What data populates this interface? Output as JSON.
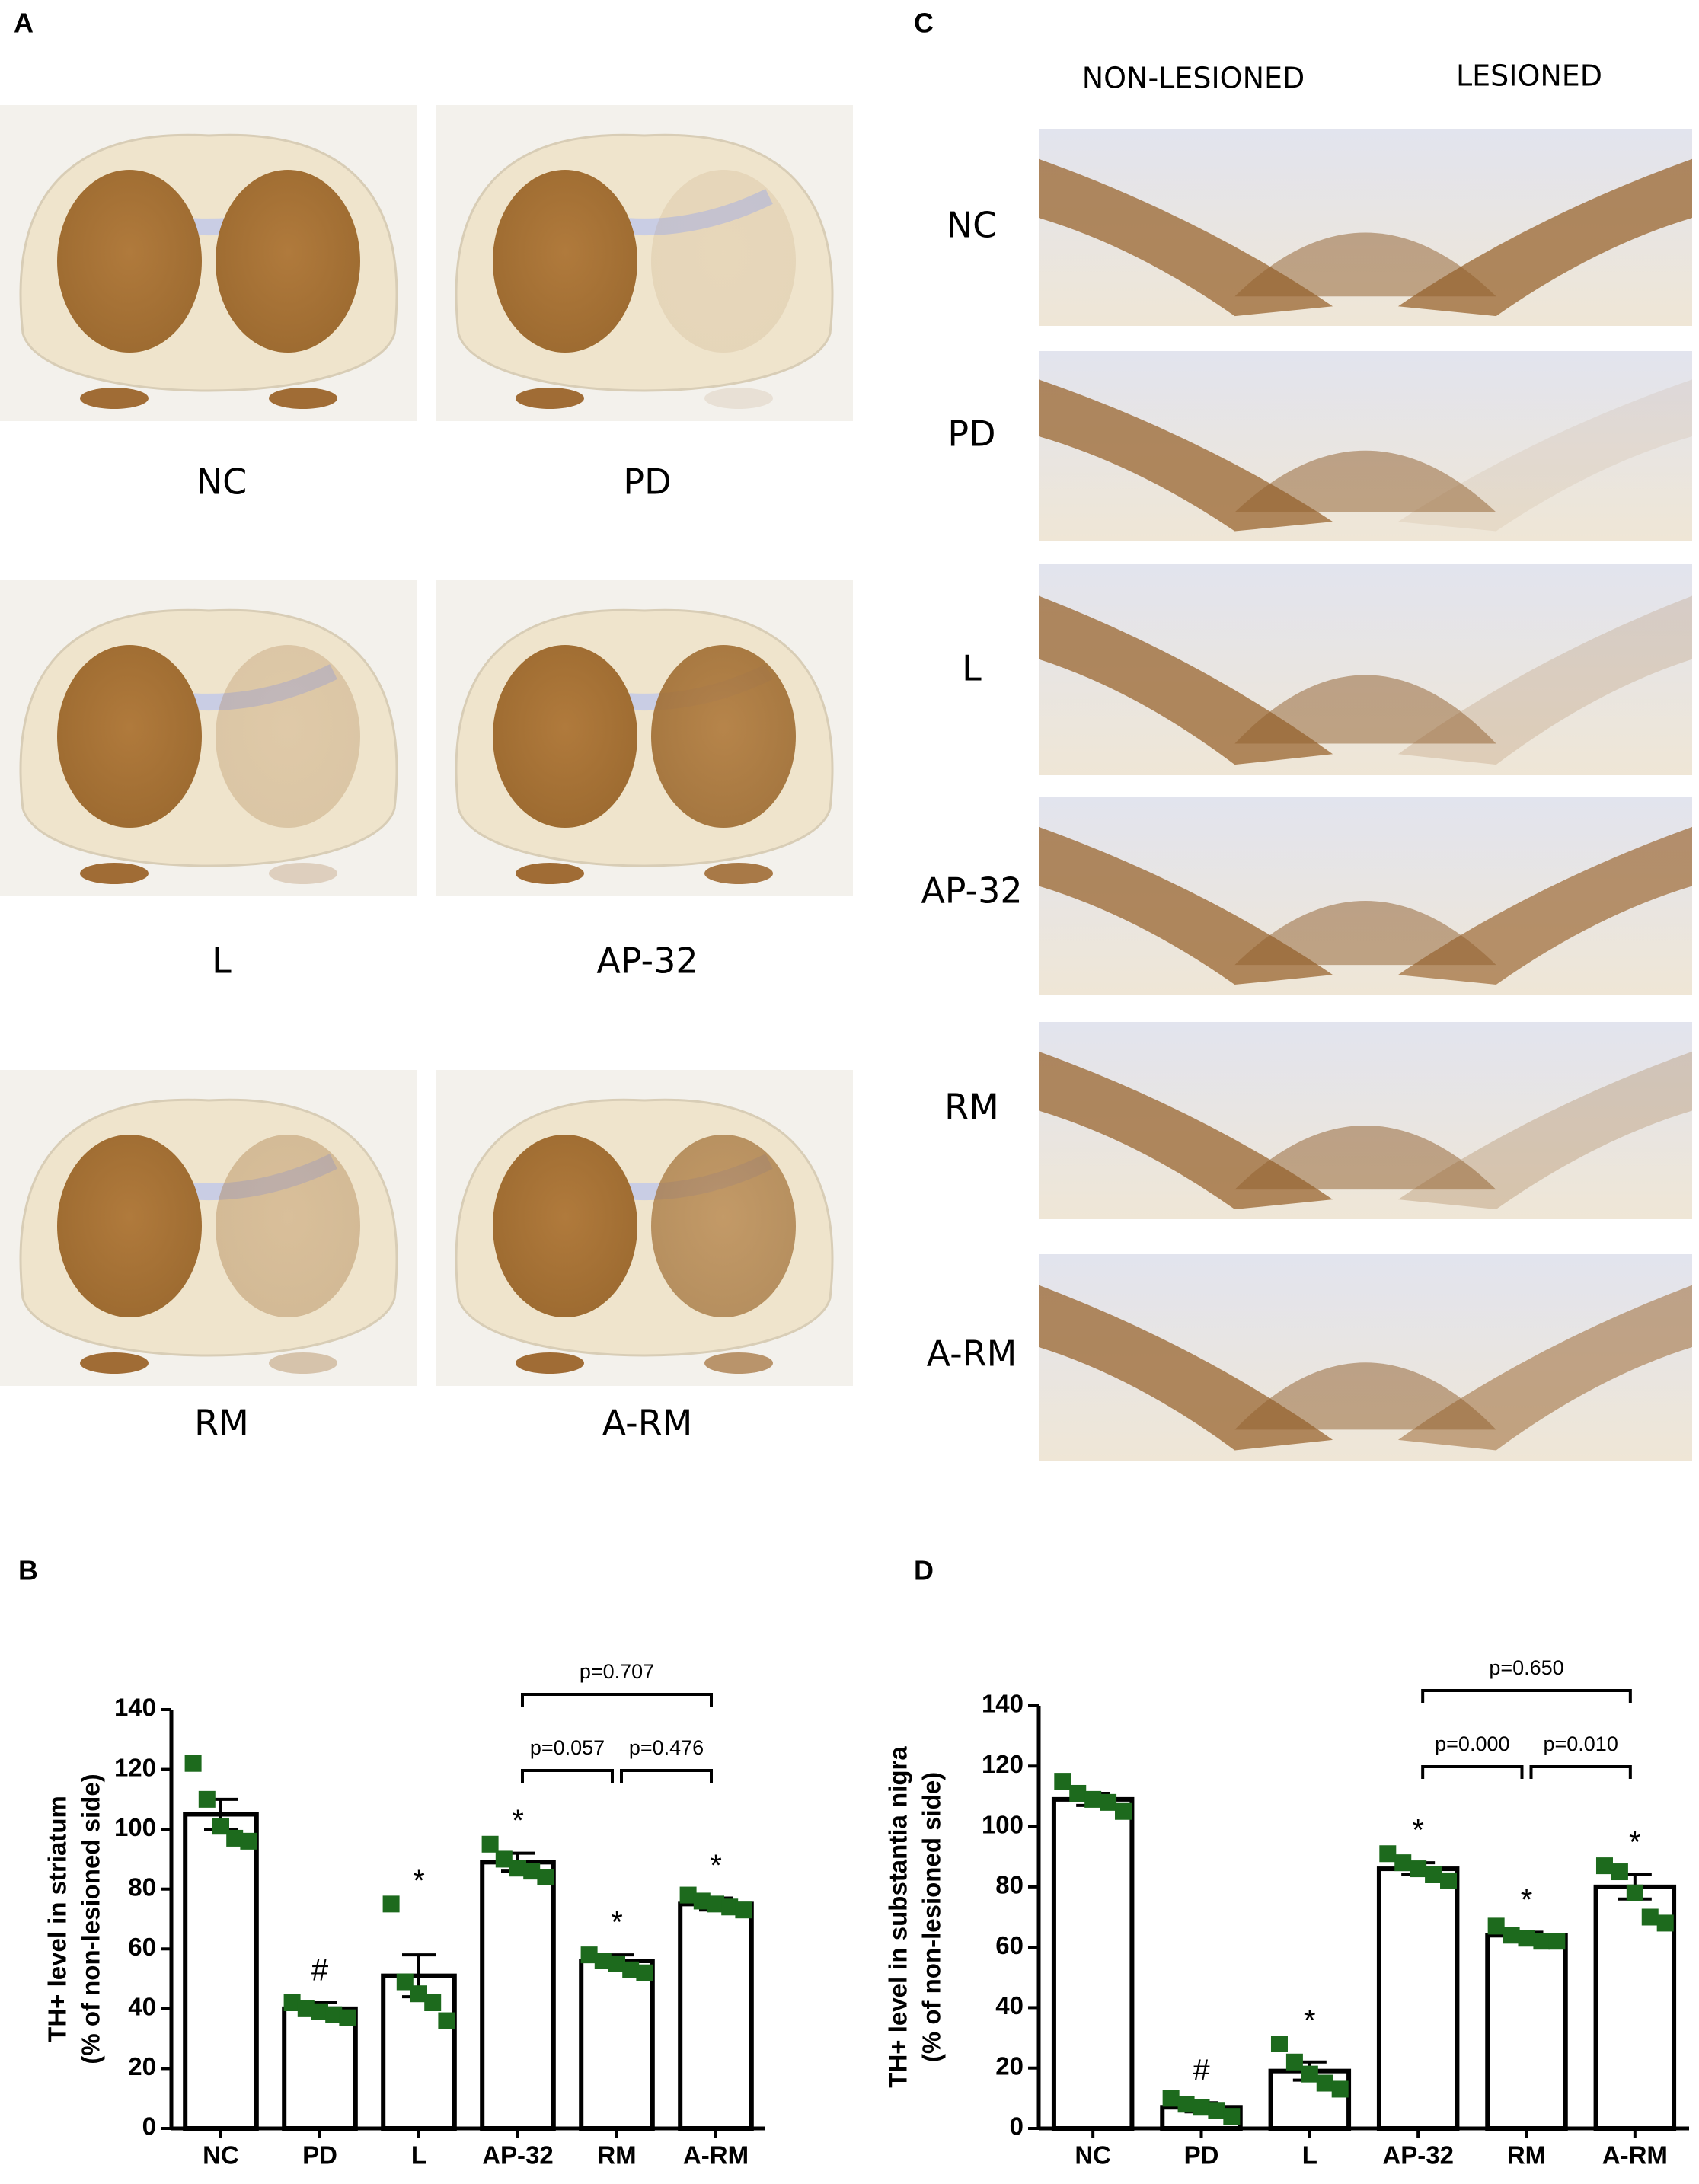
{
  "panel_a": {
    "label": "A",
    "image_labels": [
      "NC",
      "PD",
      "L",
      "AP-32",
      "RM",
      "A-RM"
    ]
  },
  "panel_c": {
    "label": "C",
    "column_headers": [
      "NON-LESIONED",
      "LESIONED"
    ],
    "row_labels": [
      "NC",
      "PD",
      "L",
      "AP-32",
      "RM",
      "A-RM"
    ]
  },
  "chart_data": [
    {
      "type": "bar",
      "panel_label": "B",
      "y_label": [
        "TH+ level in striatum",
        "(% of non-lesioned side)"
      ],
      "categories": [
        "NC",
        "PD",
        "L",
        "AP-32",
        "RM",
        "A-RM"
      ],
      "values": [
        105,
        40,
        51,
        89,
        56,
        75
      ],
      "errors": [
        5,
        2,
        7,
        3,
        2,
        2
      ],
      "points": [
        [
          122,
          110,
          101,
          97,
          96
        ],
        [
          42,
          40,
          39,
          38,
          37
        ],
        [
          75,
          49,
          45,
          42,
          36
        ],
        [
          95,
          90,
          87,
          86,
          84
        ],
        [
          58,
          56,
          55,
          53,
          52
        ],
        [
          78,
          76,
          75,
          74,
          73
        ]
      ],
      "markers": [
        null,
        "#",
        "*",
        "*",
        "*",
        "*"
      ],
      "comparisons": [
        {
          "from": "AP-32",
          "to": "A-RM",
          "label": "p=0.707"
        },
        {
          "from": "AP-32",
          "to": "RM",
          "label": "p=0.057"
        },
        {
          "from": "RM",
          "to": "A-RM",
          "label": "p=0.476"
        }
      ],
      "bar_color": "#ffffff",
      "point_color": "#1d6a1d",
      "ylim": [
        0,
        140
      ],
      "yticks": [
        0,
        20,
        40,
        60,
        80,
        100,
        120,
        140
      ]
    },
    {
      "type": "bar",
      "panel_label": "D",
      "y_label": [
        "TH+ level in substantia nigra",
        "(% of non-lesioned side)"
      ],
      "categories": [
        "NC",
        "PD",
        "L",
        "AP-32",
        "RM",
        "A-RM"
      ],
      "values": [
        109,
        7,
        19,
        86,
        64,
        80
      ],
      "errors": [
        2,
        1.5,
        3,
        2,
        1,
        4
      ],
      "points": [
        [
          115,
          111,
          109,
          108,
          105
        ],
        [
          10,
          8,
          7,
          6,
          4
        ],
        [
          28,
          22,
          18,
          15,
          13
        ],
        [
          91,
          88,
          86,
          84,
          82
        ],
        [
          67,
          64,
          63,
          62,
          62
        ],
        [
          87,
          85,
          78,
          70,
          68
        ]
      ],
      "markers": [
        null,
        "#",
        "*",
        "*",
        "*",
        "*"
      ],
      "comparisons": [
        {
          "from": "AP-32",
          "to": "A-RM",
          "label": "p=0.650"
        },
        {
          "from": "AP-32",
          "to": "RM",
          "label": "p=0.000"
        },
        {
          "from": "RM",
          "to": "A-RM",
          "label": "p=0.010"
        }
      ],
      "bar_color": "#ffffff",
      "point_color": "#1d6a1d",
      "ylim": [
        0,
        140
      ],
      "yticks": [
        0,
        20,
        40,
        60,
        80,
        100,
        120,
        140
      ]
    }
  ]
}
